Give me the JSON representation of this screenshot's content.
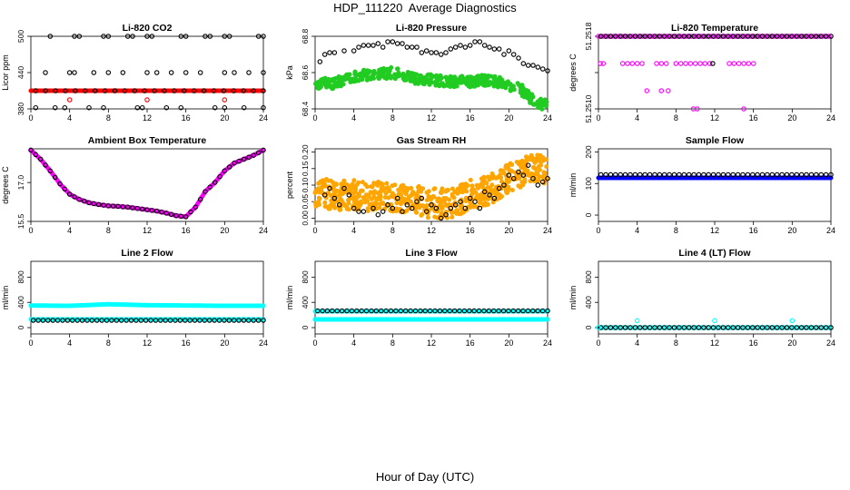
{
  "figure": {
    "title": "HDP_111220  Average Diagnostics",
    "xlabel": "Hour of Day (UTC)"
  },
  "colors": {
    "black": "#000000",
    "red": "#ff0000",
    "green": "#22cc22",
    "magenta": "#ff00ff",
    "orange": "#ffa500",
    "blue": "#0000ff",
    "cyan": "#00ffff"
  },
  "chart_data": [
    {
      "type": "scatter",
      "title": "Li-820 CO2",
      "ylabel": "Licor ppm",
      "xlim": [
        0,
        24
      ],
      "xticks": [
        0,
        4,
        8,
        12,
        16,
        20,
        24
      ],
      "ylim": [
        380,
        500
      ],
      "yticks": [
        380,
        440,
        500
      ],
      "series": [
        {
          "color": "red",
          "filled": true,
          "kind": "const",
          "value": 410,
          "x_start": 0,
          "x_end": 24,
          "n": 160
        },
        {
          "color": "red",
          "filled": false,
          "x": [
            4,
            12,
            20
          ],
          "y": [
            395,
            395,
            395
          ]
        },
        {
          "color": "black",
          "filled": false,
          "kind": "const",
          "value": 410,
          "x_start": 0.5,
          "x_end": 24,
          "n": 24
        },
        {
          "color": "black",
          "filled": false,
          "x": [
            2,
            4.5,
            5,
            7.5,
            8,
            10,
            10.5,
            12,
            12.5,
            15.5,
            16,
            18,
            18.5,
            20,
            20.5,
            23.5,
            24
          ],
          "y": [
            500,
            500,
            500,
            500,
            500,
            500,
            500,
            500,
            500,
            500,
            500,
            500,
            500,
            500,
            500,
            500,
            500
          ]
        },
        {
          "color": "black",
          "filled": false,
          "x": [
            1.5,
            4,
            4.5,
            6.5,
            8,
            9.5,
            12,
            13,
            14.5,
            16,
            17.5,
            20,
            21,
            22.5,
            24
          ],
          "y": [
            440,
            440,
            440,
            440,
            440,
            440,
            440,
            440,
            440,
            440,
            440,
            440,
            440,
            440,
            440
          ]
        },
        {
          "color": "black",
          "filled": false,
          "x": [
            0.5,
            2.5,
            3.5,
            6,
            7.5,
            11,
            11.5,
            14,
            15.5,
            19,
            20,
            22,
            24
          ],
          "y": [
            382,
            382,
            382,
            382,
            382,
            382,
            382,
            382,
            382,
            382,
            382,
            382,
            382
          ]
        }
      ]
    },
    {
      "type": "scatter",
      "title": "Li-820 Pressure",
      "ylabel": "kPa",
      "xlim": [
        0,
        24
      ],
      "xticks": [
        0,
        4,
        8,
        12,
        16,
        20,
        24
      ],
      "ylim": [
        68.4,
        68.8
      ],
      "yticks": [
        68.4,
        68.6,
        68.8
      ],
      "series": [
        {
          "color": "green",
          "filled": true,
          "kind": "band",
          "x": [
            0,
            2,
            4,
            6,
            8,
            10,
            12,
            14,
            16,
            18,
            20,
            21,
            22,
            23,
            24
          ],
          "y": [
            68.54,
            68.54,
            68.58,
            68.59,
            68.6,
            68.57,
            68.56,
            68.55,
            68.55,
            68.56,
            68.53,
            68.52,
            68.47,
            68.43,
            68.42
          ],
          "spread": 0.03,
          "n": 500
        },
        {
          "color": "black",
          "filled": false,
          "x": [
            0.5,
            1,
            1.5,
            2,
            3,
            4,
            4.5,
            5,
            5.5,
            6,
            6.5,
            7,
            7.5,
            8,
            8.5,
            9,
            9.5,
            10,
            10.5,
            11,
            11.5,
            12,
            12.5,
            13,
            13.5,
            14,
            14.5,
            15,
            15.5,
            16,
            16.5,
            17,
            17.5,
            18,
            18.5,
            19,
            19.5,
            20,
            20.5,
            21,
            21.5,
            22,
            22.5,
            23,
            23.5,
            24
          ],
          "y": [
            68.66,
            68.7,
            68.71,
            68.71,
            68.72,
            68.72,
            68.74,
            68.75,
            68.75,
            68.75,
            68.76,
            68.74,
            68.77,
            68.77,
            68.76,
            68.76,
            68.74,
            68.74,
            68.74,
            68.71,
            68.72,
            68.71,
            68.71,
            68.7,
            68.71,
            68.73,
            68.74,
            68.75,
            68.74,
            68.75,
            68.77,
            68.77,
            68.75,
            68.74,
            68.73,
            68.73,
            68.7,
            68.72,
            68.7,
            68.68,
            68.65,
            68.64,
            68.64,
            68.63,
            68.62,
            68.61
          ]
        }
      ]
    },
    {
      "type": "scatter",
      "title": "Li-820 Temperature",
      "ylabel": "degrees C",
      "xlim": [
        0,
        24
      ],
      "xticks": [
        0,
        4,
        8,
        12,
        16,
        20,
        24
      ],
      "ylim": [
        51.251,
        51.2518
      ],
      "yticks": [
        51.251,
        51.2514,
        51.2518
      ],
      "ytick_labels": [
        "51.2510",
        "",
        "51.2518"
      ],
      "series": [
        {
          "color": "magenta",
          "filled": false,
          "kind": "const",
          "value": 51.2518,
          "x_start": 0,
          "x_end": 24,
          "n": 96
        },
        {
          "color": "black",
          "filled": false,
          "kind": "const",
          "value": 51.2518,
          "x_start": 0.25,
          "x_end": 24,
          "n": 48
        },
        {
          "color": "magenta",
          "filled": false,
          "x": [
            0.2,
            0.5,
            2.5,
            3,
            3.5,
            4,
            4.5,
            6,
            6.5,
            7,
            8,
            8.5,
            9,
            9.5,
            10,
            10.5,
            11,
            11.5,
            13.5,
            14,
            14.5,
            15,
            15.5,
            16
          ],
          "y": [
            51.2515,
            51.2515,
            51.2515,
            51.2515,
            51.2515,
            51.2515,
            51.2515,
            51.2515,
            51.2515,
            51.2515,
            51.2515,
            51.2515,
            51.2515,
            51.2515,
            51.2515,
            51.2515,
            51.2515,
            51.2515,
            51.2515,
            51.2515,
            51.2515,
            51.2515,
            51.2515,
            51.2515
          ]
        },
        {
          "color": "black",
          "filled": false,
          "x": [
            11.8
          ],
          "y": [
            51.2515
          ]
        },
        {
          "color": "magenta",
          "filled": false,
          "x": [
            5,
            6.5,
            7.2
          ],
          "y": [
            51.2512,
            51.2512,
            51.2512
          ]
        },
        {
          "color": "magenta",
          "filled": false,
          "x": [
            9.8,
            10.2,
            15
          ],
          "y": [
            51.251,
            51.251,
            51.251
          ]
        }
      ]
    },
    {
      "type": "scatter",
      "title": "Ambient Box Temperature",
      "ylabel": "degrees C",
      "xlim": [
        0,
        24
      ],
      "xticks": [
        0,
        4,
        8,
        12,
        16,
        20,
        24
      ],
      "ylim": [
        15.5,
        18.3
      ],
      "yticks": [
        15.5,
        17.0
      ],
      "ytick_labels": [
        "15.5",
        "17.0"
      ],
      "series": [
        {
          "color": "magenta",
          "filled": true,
          "kind": "curve",
          "x": [
            0,
            1,
            2,
            3,
            4,
            5,
            6,
            7,
            8,
            9,
            10,
            11,
            12,
            13,
            14,
            15,
            16,
            17,
            18,
            19,
            20,
            21,
            22,
            23,
            24
          ],
          "y": [
            18.25,
            17.9,
            17.45,
            16.95,
            16.55,
            16.35,
            16.22,
            16.15,
            16.1,
            16.08,
            16.05,
            16.0,
            15.95,
            15.9,
            15.82,
            15.72,
            15.68,
            16.05,
            16.65,
            17.0,
            17.45,
            17.75,
            17.9,
            18.05,
            18.25
          ],
          "n": 240
        },
        {
          "color": "black",
          "filled": false,
          "kind": "curve",
          "x": [
            0,
            1,
            2,
            3,
            4,
            5,
            6,
            7,
            8,
            9,
            10,
            11,
            12,
            13,
            14,
            15,
            16,
            17,
            18,
            19,
            20,
            21,
            22,
            23,
            24
          ],
          "y": [
            18.25,
            17.9,
            17.45,
            16.95,
            16.55,
            16.35,
            16.22,
            16.15,
            16.1,
            16.08,
            16.05,
            16.0,
            15.95,
            15.9,
            15.82,
            15.72,
            15.68,
            16.05,
            16.65,
            17.0,
            17.45,
            17.75,
            17.9,
            18.05,
            18.25
          ],
          "n": 49
        }
      ]
    },
    {
      "type": "scatter",
      "title": "Gas Stream RH",
      "ylabel": "percent",
      "xlim": [
        0,
        24
      ],
      "xticks": [
        0,
        4,
        8,
        12,
        16,
        20,
        24
      ],
      "ylim": [
        -0.01,
        0.21
      ],
      "yticks": [
        0.0,
        0.05,
        0.1,
        0.15,
        0.2
      ],
      "ytick_labels": [
        "0.00",
        "0.05",
        "0.10",
        "0.15",
        "0.20"
      ],
      "series": [
        {
          "color": "orange",
          "filled": true,
          "kind": "band",
          "x": [
            0,
            2,
            4,
            6,
            8,
            10,
            12,
            14,
            16,
            18,
            20,
            22,
            24
          ],
          "y": [
            0.08,
            0.07,
            0.07,
            0.065,
            0.065,
            0.055,
            0.045,
            0.045,
            0.07,
            0.085,
            0.12,
            0.15,
            0.15
          ],
          "spread": 0.045,
          "n": 650
        },
        {
          "color": "black",
          "filled": false,
          "x": [
            1,
            1.5,
            2,
            2.5,
            3,
            3.5,
            4,
            4.5,
            5,
            6,
            6.5,
            7,
            7.5,
            8,
            8.5,
            9,
            9.5,
            10,
            10.5,
            11,
            11.5,
            12,
            12.5,
            13,
            13.5,
            14,
            14.5,
            15,
            15.5,
            16,
            16.5,
            17,
            17.5,
            18,
            18.5,
            19,
            19.5,
            20,
            20.5,
            21,
            21.5,
            22,
            22.5,
            23,
            23.5,
            24
          ],
          "y": [
            0.07,
            0.09,
            0.06,
            0.04,
            0.09,
            0.07,
            0.03,
            0.02,
            0.02,
            0.03,
            0.01,
            0.02,
            0.04,
            0.03,
            0.06,
            0.02,
            0.04,
            0.03,
            0.05,
            0.06,
            0.02,
            0.04,
            0.03,
            0.0,
            0.01,
            0.03,
            0.04,
            0.05,
            0.03,
            0.06,
            0.05,
            0.03,
            0.08,
            0.07,
            0.06,
            0.09,
            0.1,
            0.13,
            0.12,
            0.14,
            0.13,
            0.16,
            0.12,
            0.1,
            0.11,
            0.12
          ]
        }
      ]
    },
    {
      "type": "scatter",
      "title": "Sample Flow",
      "ylabel": "ml/min",
      "xlim": [
        0,
        24
      ],
      "xticks": [
        0,
        4,
        8,
        12,
        16,
        20,
        24
      ],
      "ylim": [
        -20,
        210
      ],
      "yticks": [
        0,
        100,
        200
      ],
      "series": [
        {
          "color": "blue",
          "filled": true,
          "kind": "const",
          "value": 118,
          "x_start": 0,
          "x_end": 24,
          "n": 200
        },
        {
          "color": "black",
          "filled": false,
          "kind": "const",
          "value": 128,
          "x_start": 0.25,
          "x_end": 24,
          "n": 48
        }
      ]
    },
    {
      "type": "scatter",
      "title": "Line 2 Flow",
      "ylabel": "ml/min",
      "xlim": [
        0,
        24
      ],
      "xticks": [
        0,
        4,
        8,
        12,
        16,
        20,
        24
      ],
      "ylim": [
        -100,
        1050
      ],
      "yticks": [
        0,
        400,
        800
      ],
      "series": [
        {
          "color": "cyan",
          "filled": true,
          "kind": "curve",
          "x": [
            0,
            4,
            8,
            12,
            16,
            20,
            24
          ],
          "y": [
            350,
            345,
            370,
            355,
            350,
            345,
            345
          ],
          "n": 200
        },
        {
          "color": "cyan",
          "filled": true,
          "kind": "const",
          "value": 130,
          "x_start": 0,
          "x_end": 24,
          "n": 200
        },
        {
          "color": "black",
          "filled": false,
          "kind": "const",
          "value": 115,
          "x_start": 0.25,
          "x_end": 24,
          "n": 48
        }
      ]
    },
    {
      "type": "scatter",
      "title": "Line 3 Flow",
      "ylabel": "ml/min",
      "xlim": [
        0,
        24
      ],
      "xticks": [
        0,
        4,
        8,
        12,
        16,
        20,
        24
      ],
      "ylim": [
        -100,
        1050
      ],
      "yticks": [
        0,
        400,
        800
      ],
      "series": [
        {
          "color": "cyan",
          "filled": true,
          "kind": "const",
          "value": 130,
          "x_start": 0,
          "x_end": 24,
          "n": 200
        },
        {
          "color": "cyan",
          "filled": true,
          "kind": "const",
          "value": 260,
          "x_start": 0,
          "x_end": 24,
          "n": 150
        },
        {
          "color": "black",
          "filled": false,
          "kind": "const",
          "value": 265,
          "x_start": 0.25,
          "x_end": 24,
          "n": 48
        }
      ]
    },
    {
      "type": "scatter",
      "title": "Line 4 (LT) Flow",
      "ylabel": "ml/min",
      "xlim": [
        0,
        24
      ],
      "xticks": [
        0,
        4,
        8,
        12,
        16,
        20,
        24
      ],
      "ylim": [
        -100,
        1050
      ],
      "yticks": [
        0,
        400,
        800
      ],
      "series": [
        {
          "color": "cyan",
          "filled": false,
          "kind": "const",
          "value": 0,
          "x_start": 0,
          "x_end": 24,
          "n": 96
        },
        {
          "color": "black",
          "filled": false,
          "kind": "const",
          "value": 0,
          "x_start": 0.25,
          "x_end": 24,
          "n": 48
        },
        {
          "color": "cyan",
          "filled": false,
          "x": [
            0,
            4,
            12,
            20
          ],
          "y": [
            0,
            110,
            110,
            110
          ]
        }
      ]
    }
  ]
}
